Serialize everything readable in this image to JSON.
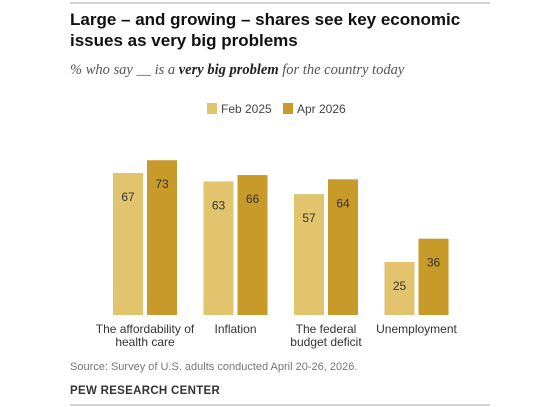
{
  "chart_data": {
    "type": "bar",
    "title": [
      "Large – and growing – shares see key economic",
      "issues as very big problems"
    ],
    "subtitle": [
      "% who say __ is a ",
      "very big problem",
      " for the country today"
    ],
    "categories": [
      [
        "The affordability of",
        "health care"
      ],
      [
        "Inflation"
      ],
      [
        "The federal",
        "budget deficit"
      ],
      [
        "Unemployment"
      ]
    ],
    "series": [
      {
        "name": "Feb 2025",
        "color": "#e2c46f",
        "values": [
          67,
          63,
          57,
          25
        ]
      },
      {
        "name": "Apr 2026",
        "color": "#c79a2a",
        "values": [
          73,
          66,
          64,
          36
        ]
      }
    ],
    "source": "Source: Survey of U.S. adults conducted April 20-26, 2026.",
    "organization": "PEW RESEARCH CENTER"
  }
}
